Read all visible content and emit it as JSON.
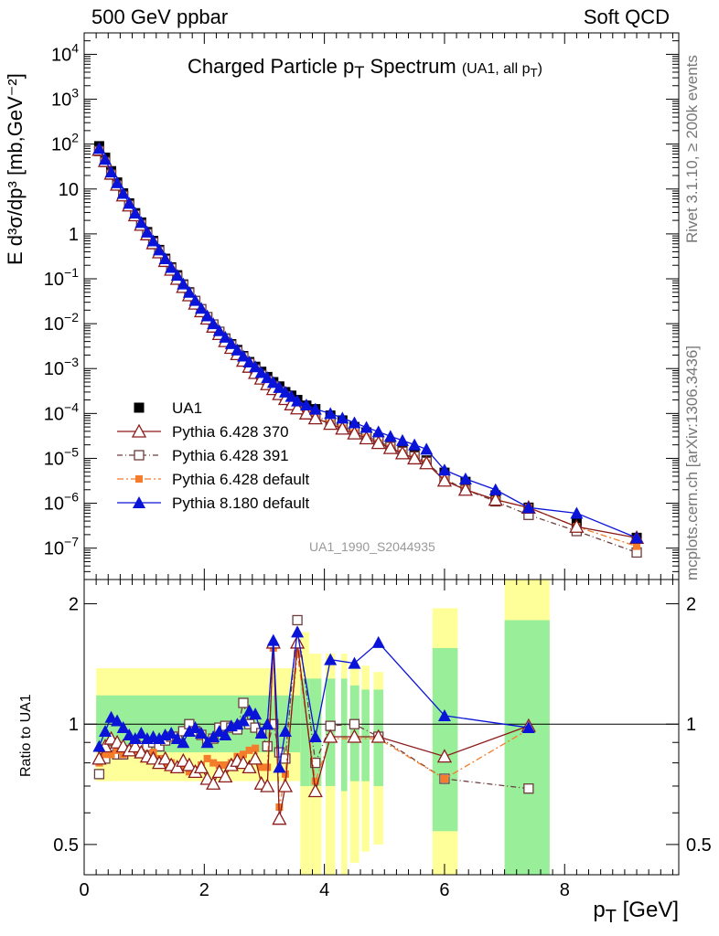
{
  "header": {
    "energy": "500 GeV ppbar",
    "category": "Soft QCD"
  },
  "side": {
    "rivet": "Rivet 3.1.10, ≥ 200k events",
    "site": "mcplots.cern.ch [arXiv:1306.3436]"
  },
  "title": {
    "main": "Charged Particle p",
    "main_sub": "T",
    "main_rest": " Spectrum",
    "qualifier": "(UA1, all p",
    "qualifier_sub": "T",
    "qualifier_rest": ")"
  },
  "analysis_id": "UA1_1990_S2044935",
  "axes": {
    "ylabel_top": "E d³σ/dp³ [mb,GeV⁻²]",
    "ylabel_bottom": "Ratio to UA1",
    "xlabel": "p",
    "xlabel_sub": "T",
    "xlabel_unit": " [GeV]"
  },
  "colors": {
    "ua1": "#000000",
    "p370": "#8b1a1a",
    "p391": "#6b3d3d",
    "pdef": "#f47c2a",
    "p8": "#0a14d8",
    "band_yellow": "#ffff99",
    "band_green": "#99ee99"
  },
  "chart_data": {
    "type": "scatter",
    "title": "Charged Particle pT Spectrum (UA1, all pT)",
    "xlabel": "pT [GeV]",
    "ylabel": "E d3sigma/dp3 [mb,GeV-2]",
    "xlim": [
      0,
      9.9
    ],
    "ylim": [
      2e-08,
      30000.0
    ],
    "yscale": "log",
    "x_ticks": [
      "0",
      "2",
      "4",
      "6",
      "8"
    ],
    "y_ticks": [
      "10^{-7}",
      "10^{-6}",
      "10^{-5}",
      "10^{-4}",
      "10^{-3}",
      "10^{-2}",
      "10^{-1}",
      "1",
      "10",
      "10^{2}",
      "10^{3}",
      "10^{4}"
    ],
    "legend": [
      "UA1",
      "Pythia 6.428 370",
      "Pythia 6.428 391",
      "Pythia 6.428 default",
      "Pythia 8.180 default"
    ],
    "x": [
      0.25,
      0.35,
      0.45,
      0.55,
      0.65,
      0.75,
      0.85,
      0.95,
      1.05,
      1.15,
      1.25,
      1.35,
      1.45,
      1.55,
      1.65,
      1.75,
      1.85,
      1.95,
      2.05,
      2.15,
      2.25,
      2.35,
      2.45,
      2.55,
      2.65,
      2.75,
      2.85,
      2.95,
      3.05,
      3.15,
      3.25,
      3.35,
      3.45,
      3.55,
      3.7,
      3.85,
      4.1,
      4.3,
      4.5,
      4.7,
      4.9,
      5.1,
      5.3,
      5.5,
      5.7,
      6.0,
      6.35,
      6.85,
      7.4,
      8.2,
      9.2
    ],
    "series": [
      {
        "name": "UA1",
        "values": [
          90,
          50,
          25,
          14,
          8,
          4.8,
          2.9,
          1.8,
          1.1,
          0.7,
          0.44,
          0.28,
          0.18,
          0.12,
          0.075,
          0.05,
          0.032,
          0.021,
          0.014,
          0.0095,
          0.0066,
          0.0047,
          0.0035,
          0.0026,
          0.0019,
          0.0014,
          0.0011,
          0.00085,
          0.00065,
          0.0005,
          0.0004,
          0.0003,
          0.00025,
          0.0002,
          0.00015,
          0.000125,
          9e-05,
          7e-05,
          5e-05,
          3.8e-05,
          2.8e-05,
          2.1e-05,
          1.6e-05,
          1.2e-05,
          9e-06,
          4.8e-06,
          3e-06,
          1.5e-06,
          8e-07,
          4e-07,
          1.7e-07
        ]
      },
      {
        "name": "Pythia 6.428 370",
        "values": [
          75,
          42,
          22,
          12.5,
          7.2,
          4.3,
          2.6,
          1.6,
          0.98,
          0.62,
          0.39,
          0.25,
          0.16,
          0.1,
          0.066,
          0.043,
          0.028,
          0.019,
          0.013,
          0.0086,
          0.0059,
          0.0041,
          0.0029,
          0.0021,
          0.0015,
          0.0011,
          0.0008,
          0.0006,
          0.00045,
          0.00035,
          0.00027,
          0.00021,
          0.00016,
          0.00013,
          0.0001,
          7.8e-05,
          5.9e-05,
          4.6e-05,
          3.6e-05,
          2.8e-05,
          2.2e-05,
          1.7e-05,
          1.3e-05,
          1e-05,
          7.8e-06,
          3.2e-06,
          2e-06,
          1.2e-06,
          8e-07,
          3e-07,
          1.7e-07
        ]
      },
      {
        "name": "Pythia 6.428 391",
        "values": [
          70,
          40,
          21,
          12,
          7,
          4.3,
          2.6,
          1.6,
          1.0,
          0.64,
          0.41,
          0.26,
          0.17,
          0.11,
          0.072,
          0.048,
          0.032,
          0.021,
          0.014,
          0.0096,
          0.0066,
          0.0046,
          0.0033,
          0.0024,
          0.0018,
          0.0013,
          0.00096,
          0.00072,
          0.00054,
          0.00041,
          0.00031,
          0.00024,
          0.00018,
          0.00014,
          0.00011,
          8.6e-05,
          6.6e-05,
          5.1e-05,
          4e-05,
          3.1e-05,
          2.4e-05,
          1.8e-05,
          1.4e-05,
          1.1e-05,
          8.3e-06,
          3.5e-06,
          2e-06,
          1.1e-06,
          5.5e-07,
          2.4e-07,
          8e-08
        ]
      },
      {
        "name": "Pythia 6.428 default",
        "values": [
          72,
          41,
          21.5,
          12.2,
          7.1,
          4.2,
          2.5,
          1.55,
          0.95,
          0.6,
          0.38,
          0.24,
          0.155,
          0.1,
          0.065,
          0.042,
          0.028,
          0.019,
          0.013,
          0.0088,
          0.006,
          0.0042,
          0.003,
          0.0022,
          0.0016,
          0.0012,
          0.00088,
          0.00066,
          0.0005,
          0.00038,
          0.00029,
          0.00022,
          0.00017,
          0.00013,
          0.0001,
          8e-05,
          6e-05,
          4.7e-05,
          3.7e-05,
          2.9e-05,
          2.2e-05,
          1.7e-05,
          1.3e-05,
          1e-05,
          7.8e-06,
          3.3e-06,
          2e-06,
          1.2e-06,
          8e-07,
          3e-07,
          1.1e-07
        ]
      },
      {
        "name": "Pythia 8.180 default",
        "values": [
          80,
          46,
          24,
          13.8,
          8,
          4.8,
          2.9,
          1.8,
          1.1,
          0.7,
          0.44,
          0.28,
          0.18,
          0.12,
          0.077,
          0.05,
          0.033,
          0.022,
          0.015,
          0.01,
          0.007,
          0.005,
          0.0036,
          0.0026,
          0.0019,
          0.0014,
          0.0011,
          0.00082,
          0.00063,
          0.00049,
          0.00038,
          0.0003,
          0.00024,
          0.00019,
          0.000155,
          0.000125,
          0.0001,
          7.9e-05,
          6.2e-05,
          4.9e-05,
          3.9e-05,
          3.1e-05,
          2.5e-05,
          2e-05,
          1.6e-05,
          5.5e-06,
          3.5e-06,
          2e-06,
          8e-07,
          6e-07,
          1.7e-07
        ]
      }
    ],
    "ratio": {
      "ylabel": "Ratio to UA1",
      "ylim": [
        0.42,
        2.3
      ],
      "yscale": "log",
      "y_ticks": [
        "0.5",
        "1",
        "2"
      ],
      "band_x": [
        [
          0.2,
          3.6
        ],
        [
          3.6,
          3.75
        ],
        [
          3.75,
          3.95
        ],
        [
          4.02,
          4.18
        ],
        [
          4.28,
          4.38
        ],
        [
          4.43,
          4.58
        ],
        [
          4.62,
          4.75
        ],
        [
          4.82,
          4.98
        ],
        [
          5.8,
          6.22
        ],
        [
          7.0,
          7.75
        ]
      ],
      "band_yellow": [
        [
          0.72,
          1.38
        ],
        [
          0.4,
          1.7
        ],
        [
          0.42,
          1.5
        ],
        [
          0.4,
          1.5
        ],
        [
          0.4,
          1.5
        ],
        [
          0.45,
          1.4
        ],
        [
          0.48,
          1.4
        ],
        [
          0.5,
          1.35
        ],
        [
          0.4,
          1.95
        ],
        [
          0.4,
          2.4
        ]
      ],
      "band_green": [
        [
          0.85,
          1.18
        ],
        [
          0.7,
          1.3
        ],
        [
          0.7,
          1.3
        ],
        [
          0.7,
          1.3
        ],
        [
          0.68,
          1.3
        ],
        [
          0.72,
          1.25
        ],
        [
          0.72,
          1.22
        ],
        [
          0.7,
          1.22
        ],
        [
          0.54,
          1.55
        ],
        [
          0.4,
          1.82
        ]
      ],
      "x": [
        0.25,
        0.35,
        0.45,
        0.55,
        0.65,
        0.75,
        0.85,
        0.95,
        1.05,
        1.15,
        1.25,
        1.35,
        1.45,
        1.55,
        1.65,
        1.75,
        1.85,
        1.95,
        2.05,
        2.15,
        2.25,
        2.35,
        2.45,
        2.55,
        2.65,
        2.75,
        2.85,
        2.95,
        3.05,
        3.15,
        3.25,
        3.35,
        3.55,
        3.85,
        4.1,
        4.5,
        4.9,
        6.0,
        7.4
      ],
      "series": [
        {
          "name": "Pythia 6.428 370",
          "values": [
            0.82,
            0.88,
            0.92,
            0.9,
            0.88,
            0.86,
            0.88,
            0.85,
            0.83,
            0.82,
            0.8,
            0.82,
            0.79,
            0.78,
            0.81,
            0.79,
            0.76,
            0.78,
            0.73,
            0.71,
            0.76,
            0.74,
            0.79,
            0.81,
            0.8,
            0.78,
            0.82,
            0.71,
            0.7,
            1.6,
            0.58,
            0.7,
            1.6,
            0.68,
            0.93,
            0.93,
            0.93,
            0.83,
            0.99
          ]
        },
        {
          "name": "Pythia 6.428 391",
          "values": [
            0.75,
            0.82,
            0.86,
            0.84,
            0.84,
            0.86,
            0.89,
            0.88,
            0.88,
            0.9,
            0.88,
            0.91,
            0.93,
            0.93,
            0.96,
            1.0,
            0.96,
            0.94,
            0.9,
            0.92,
            0.98,
            0.99,
            0.98,
            0.97,
            1.13,
            1.0,
            0.98,
            0.95,
            0.88,
            1.0,
            0.85,
            0.82,
            1.82,
            0.8,
            0.99,
            1.0,
            0.93,
            0.73,
            0.69
          ]
        },
        {
          "name": "Pythia 6.428 default",
          "values": [
            0.8,
            0.84,
            0.84,
            0.86,
            0.84,
            0.86,
            0.86,
            0.85,
            0.82,
            0.85,
            0.82,
            0.79,
            0.8,
            0.77,
            0.78,
            0.76,
            0.77,
            0.79,
            0.82,
            0.8,
            0.79,
            0.79,
            0.8,
            0.83,
            0.84,
            0.86,
            0.87,
            0.78,
            0.78,
            1.55,
            0.62,
            0.75,
            1.5,
            0.72,
            0.92,
            0.92,
            0.92,
            0.73,
            0.97
          ]
        },
        {
          "name": "Pythia 8.180 default",
          "values": [
            0.88,
            0.96,
            1.04,
            1.02,
            0.98,
            0.94,
            0.92,
            0.95,
            0.92,
            0.93,
            0.92,
            0.94,
            0.95,
            0.92,
            0.9,
            0.96,
            0.98,
            0.95,
            0.9,
            0.93,
            0.96,
            0.94,
            0.99,
            1.0,
            1.02,
            1.08,
            1.06,
            0.95,
            1.0,
            1.62,
            0.78,
            0.96,
            1.7,
            0.93,
            1.45,
            1.42,
            1.6,
            1.05,
            0.98
          ]
        }
      ]
    }
  }
}
